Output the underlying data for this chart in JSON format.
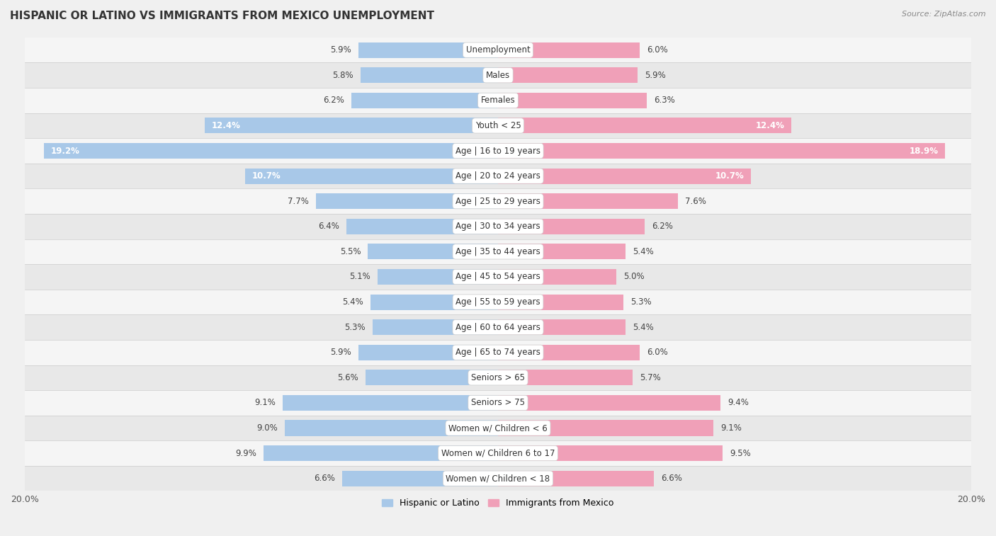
{
  "title": "HISPANIC OR LATINO VS IMMIGRANTS FROM MEXICO UNEMPLOYMENT",
  "source": "Source: ZipAtlas.com",
  "categories": [
    "Unemployment",
    "Males",
    "Females",
    "Youth < 25",
    "Age | 16 to 19 years",
    "Age | 20 to 24 years",
    "Age | 25 to 29 years",
    "Age | 30 to 34 years",
    "Age | 35 to 44 years",
    "Age | 45 to 54 years",
    "Age | 55 to 59 years",
    "Age | 60 to 64 years",
    "Age | 65 to 74 years",
    "Seniors > 65",
    "Seniors > 75",
    "Women w/ Children < 6",
    "Women w/ Children 6 to 17",
    "Women w/ Children < 18"
  ],
  "hispanic_values": [
    5.9,
    5.8,
    6.2,
    12.4,
    19.2,
    10.7,
    7.7,
    6.4,
    5.5,
    5.1,
    5.4,
    5.3,
    5.9,
    5.6,
    9.1,
    9.0,
    9.9,
    6.6
  ],
  "mexico_values": [
    6.0,
    5.9,
    6.3,
    12.4,
    18.9,
    10.7,
    7.6,
    6.2,
    5.4,
    5.0,
    5.3,
    5.4,
    6.0,
    5.7,
    9.4,
    9.1,
    9.5,
    6.6
  ],
  "hispanic_color": "#a8c8e8",
  "mexico_color": "#f0a0b8",
  "row_colors": [
    "#f5f5f5",
    "#e8e8e8"
  ],
  "background_color": "#f0f0f0",
  "axis_limit": 20.0,
  "bar_height": 0.62,
  "label_inside_threshold": 10.0,
  "legend_hispanic": "Hispanic or Latino",
  "legend_mexico": "Immigrants from Mexico"
}
